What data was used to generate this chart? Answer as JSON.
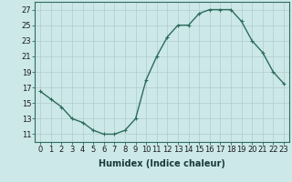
{
  "x": [
    0,
    1,
    2,
    3,
    4,
    5,
    6,
    7,
    8,
    9,
    10,
    11,
    12,
    13,
    14,
    15,
    16,
    17,
    18,
    19,
    20,
    21,
    22,
    23
  ],
  "y": [
    16.5,
    15.5,
    14.5,
    13.0,
    12.5,
    11.5,
    11.0,
    11.0,
    11.5,
    13.0,
    18.0,
    21.0,
    23.5,
    25.0,
    25.0,
    26.5,
    27.0,
    27.0,
    27.0,
    25.5,
    23.0,
    21.5,
    19.0,
    17.5
  ],
  "line_color": "#2d6b5e",
  "marker": "+",
  "marker_size": 3,
  "bg_color": "#cce8e8",
  "grid_color": "#b0cccc",
  "xlabel": "Humidex (Indice chaleur)",
  "ylim": [
    10,
    28
  ],
  "xlim": [
    -0.5,
    23.5
  ],
  "yticks": [
    11,
    13,
    15,
    17,
    19,
    21,
    23,
    25,
    27
  ],
  "xticks": [
    0,
    1,
    2,
    3,
    4,
    5,
    6,
    7,
    8,
    9,
    10,
    11,
    12,
    13,
    14,
    15,
    16,
    17,
    18,
    19,
    20,
    21,
    22,
    23
  ],
  "xtick_labels": [
    "0",
    "1",
    "2",
    "3",
    "4",
    "5",
    "6",
    "7",
    "8",
    "9",
    "10",
    "11",
    "12",
    "13",
    "14",
    "15",
    "16",
    "17",
    "18",
    "19",
    "20",
    "21",
    "22",
    "23"
  ],
  "line_width": 1.0,
  "font_size": 6,
  "xlabel_fontsize": 7
}
